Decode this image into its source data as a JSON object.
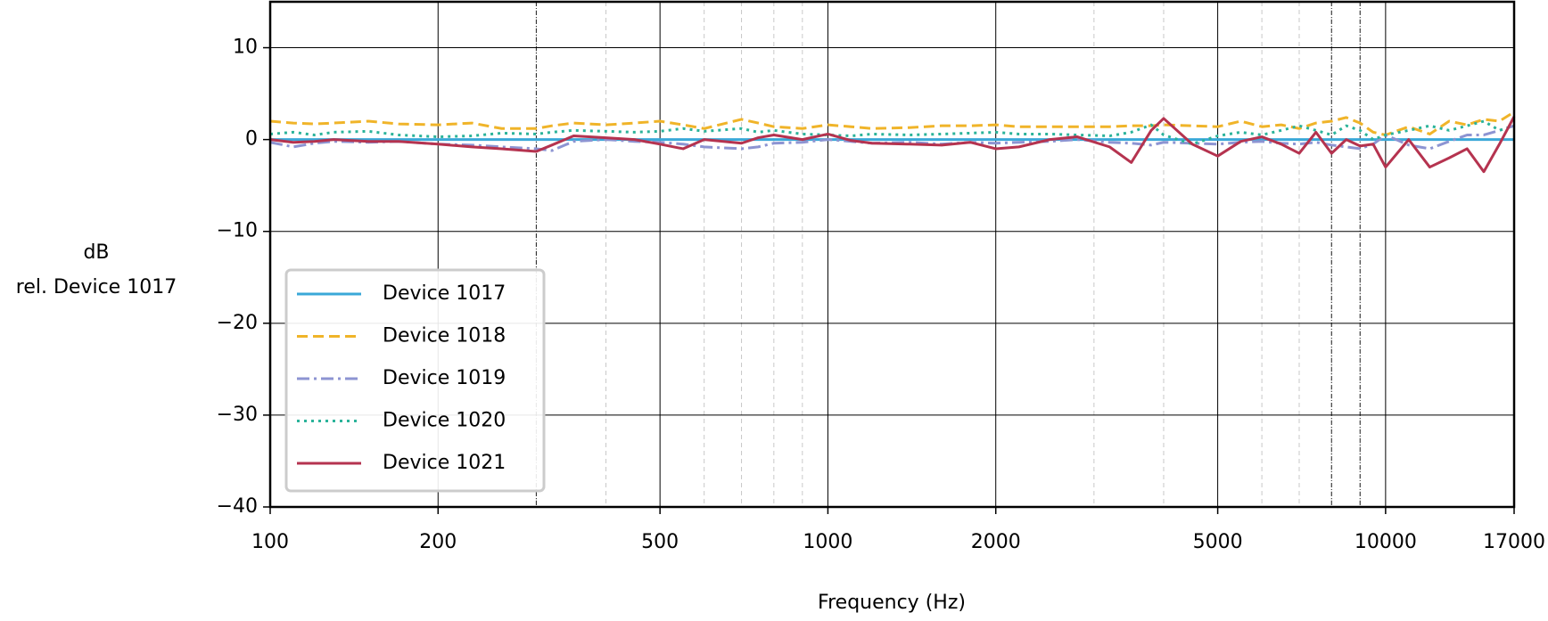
{
  "chart_data": {
    "type": "line",
    "xlabel": "Frequency (Hz)",
    "ylabel": [
      "dB",
      "rel. Device 1017"
    ],
    "xscale": "log",
    "xlim": [
      100,
      17000
    ],
    "ylim": [
      -40,
      15
    ],
    "xticks": [
      100,
      200,
      500,
      1000,
      2000,
      5000,
      10000,
      17000
    ],
    "xminorticks": [
      300,
      400,
      600,
      700,
      800,
      900,
      3000,
      4000,
      6000,
      7000,
      8000,
      9000
    ],
    "xmarkers": [
      300,
      8000,
      9000
    ],
    "yticks": [
      {
        "value": -40,
        "label": "−40"
      },
      {
        "value": -30,
        "label": "−30"
      },
      {
        "value": -20,
        "label": "−20"
      },
      {
        "value": -10,
        "label": "−10"
      },
      0,
      10
    ],
    "grid": true,
    "legend": "lower left",
    "x": [
      100,
      110,
      120,
      130,
      150,
      170,
      200,
      230,
      260,
      300,
      320,
      350,
      400,
      450,
      500,
      550,
      600,
      700,
      750,
      800,
      900,
      1000,
      1100,
      1200,
      1400,
      1600,
      1800,
      2000,
      2200,
      2500,
      2800,
      3200,
      3500,
      3800,
      4000,
      4500,
      5000,
      5500,
      6000,
      6500,
      7000,
      7500,
      8000,
      8500,
      9000,
      9500,
      10000,
      11000,
      12000,
      13000,
      14000,
      15000,
      16000,
      17000
    ],
    "series": [
      {
        "name": "Device 1017",
        "color": "#3aa8d8",
        "linestyle": "solid",
        "values": [
          0,
          0,
          0,
          0,
          0,
          0,
          0,
          0,
          0,
          0,
          0,
          0,
          0,
          0,
          0,
          0,
          0,
          0,
          0,
          0,
          0,
          0,
          0,
          0,
          0,
          0,
          0,
          0,
          0,
          0,
          0,
          0,
          0,
          0,
          0,
          0,
          0,
          0,
          0,
          0,
          0,
          0,
          0,
          0,
          0,
          0,
          0,
          0,
          0,
          0,
          0,
          0,
          0,
          0
        ]
      },
      {
        "name": "Device 1018",
        "color": "#f0b429",
        "linestyle": "dashed",
        "values": [
          2,
          1.8,
          1.7,
          1.8,
          2,
          1.7,
          1.6,
          1.8,
          1.2,
          1.2,
          1.5,
          1.8,
          1.6,
          1.8,
          2,
          1.6,
          1.2,
          2.2,
          1.8,
          1.4,
          1.2,
          1.6,
          1.4,
          1.2,
          1.3,
          1.5,
          1.5,
          1.6,
          1.4,
          1.4,
          1.4,
          1.4,
          1.5,
          1.5,
          1.6,
          1.5,
          1.4,
          2,
          1.4,
          1.6,
          1.2,
          1.8,
          2,
          2.4,
          1.8,
          0.8,
          0.5,
          1.4,
          0.6,
          2,
          1.6,
          2.2,
          2,
          3
        ]
      },
      {
        "name": "Device 1019",
        "color": "#8d94d2",
        "linestyle": "dashdot",
        "values": [
          -0.3,
          -0.8,
          -0.4,
          -0.2,
          -0.3,
          -0.2,
          -0.5,
          -0.6,
          -0.8,
          -1,
          -1.2,
          -0.2,
          0,
          -0.2,
          -0.3,
          -0.5,
          -0.8,
          -1,
          -0.8,
          -0.4,
          -0.3,
          0,
          -0.2,
          -0.4,
          -0.3,
          -0.5,
          -0.3,
          -0.4,
          -0.3,
          -0.2,
          0,
          -0.3,
          -0.4,
          -0.6,
          -0.3,
          -0.4,
          -0.5,
          -0.3,
          -0.2,
          -0.4,
          -0.5,
          -0.3,
          -0.6,
          -0.8,
          -1,
          -0.5,
          0.5,
          -0.6,
          -1,
          -0.2,
          0.5,
          0.5,
          1,
          1.5
        ]
      },
      {
        "name": "Device 1020",
        "color": "#2bb39a",
        "linestyle": "dotted",
        "values": [
          0.6,
          0.8,
          0.5,
          0.8,
          0.9,
          0.5,
          0.3,
          0.4,
          0.7,
          0.6,
          0.8,
          1,
          0.9,
          0.8,
          0.9,
          1.2,
          0.9,
          1.2,
          0.8,
          1,
          0.6,
          0.5,
          0.4,
          0.6,
          0.5,
          0.6,
          0.7,
          0.8,
          0.6,
          0.6,
          0.5,
          0.4,
          0.8,
          1.6,
          0.5,
          -0.5,
          0.4,
          0.8,
          0.5,
          1,
          1.5,
          1,
          0.5,
          1.5,
          1,
          0,
          0.5,
          1,
          1.5,
          1,
          1.5,
          2,
          1,
          1.5
        ]
      },
      {
        "name": "Device 1021",
        "color": "#b5334f",
        "linestyle": "solid",
        "values": [
          0,
          -0.3,
          -0.2,
          0,
          -0.2,
          -0.2,
          -0.5,
          -0.8,
          -1,
          -1.3,
          -0.6,
          0.4,
          0.2,
          0,
          -0.5,
          -1,
          0,
          -0.4,
          0.2,
          0.5,
          0,
          0.6,
          -0.1,
          -0.4,
          -0.5,
          -0.6,
          -0.3,
          -1,
          -0.8,
          0,
          0.3,
          -0.8,
          -2.5,
          1,
          2.3,
          -0.5,
          -1.8,
          -0.2,
          0.3,
          -0.5,
          -1.5,
          0.8,
          -1.5,
          0,
          -0.7,
          -0.5,
          -3,
          0,
          -3,
          -2,
          -1,
          -3.5,
          -0.5,
          2.5
        ]
      }
    ]
  }
}
